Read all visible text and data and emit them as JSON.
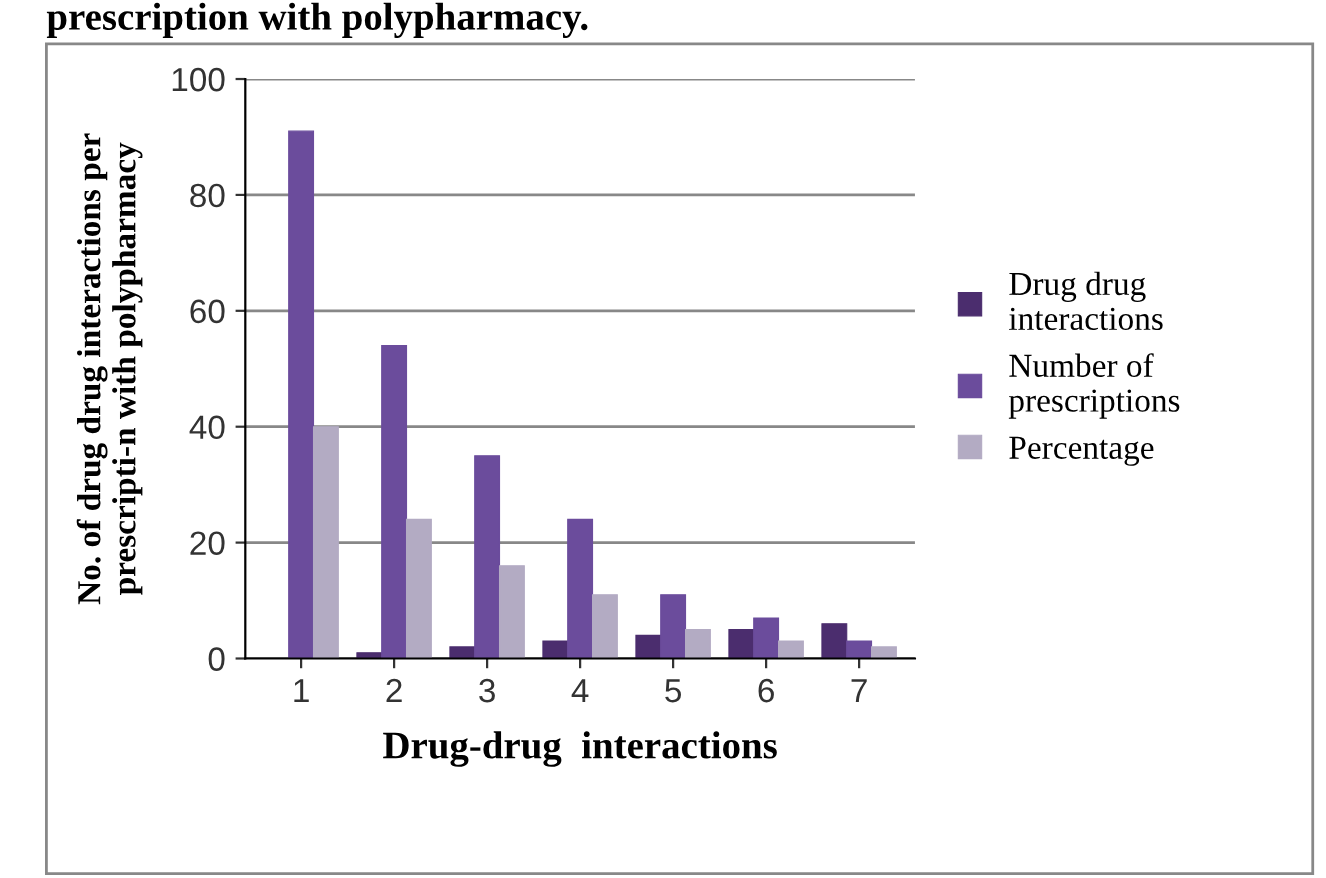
{
  "chart_data": {
    "type": "bar",
    "title": "prescription with polypharmacy.",
    "xlabel": "Drug-drug  interactions",
    "ylabel": "No. of drug drug interactions per\nprescripti-n with polypharmacy",
    "categories": [
      "1",
      "2",
      "3",
      "4",
      "5",
      "6",
      "7"
    ],
    "series": [
      {
        "name": "Drug drug\ninteractions",
        "color": "#4b2d6e",
        "values": [
          0,
          1,
          2,
          3,
          4,
          5,
          6
        ]
      },
      {
        "name": "Number of\nprescriptions",
        "color": "#6b4c9c",
        "values": [
          91,
          54,
          35,
          24,
          11,
          7,
          3
        ]
      },
      {
        "name": "Percentage",
        "color": "#b3abc3",
        "values": [
          40,
          24,
          16,
          11,
          5,
          3,
          2
        ]
      }
    ],
    "ylim": [
      0,
      100
    ],
    "yticks": [
      0,
      20,
      40,
      60,
      80,
      100
    ],
    "grid": "y",
    "legend": "right"
  }
}
